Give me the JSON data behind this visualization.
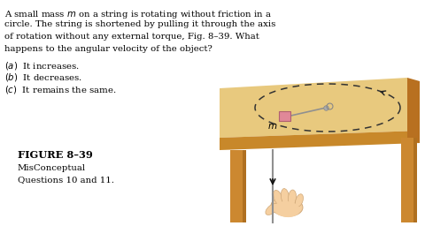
{
  "bg_color": "#ffffff",
  "text_color": "#000000",
  "q_lines": [
    "A small mass $m$ on a string is rotating without friction in a",
    "circle. The string is shortened by pulling it through the axis",
    "of rotation without any external torque, Fig. 8–39. What",
    "happens to the angular velocity of the object?"
  ],
  "opt_a": "$(a)$  It increases.",
  "opt_b": "$(b)$  It decreases.",
  "opt_c": "$(c)$  It remains the same.",
  "fig_label": "FIGURE 8–39",
  "fig_sub1": "MisConceptual",
  "fig_sub2": "Questions 10 and 11.",
  "font_size": 7.3,
  "fig_label_font_size": 8.2,
  "table_top_color": "#e8c97e",
  "table_front_color": "#c8882a",
  "table_side_color": "#b87020",
  "table_leg_color": "#cc8830",
  "table_leg_side_color": "#b07020",
  "mass_color": "#e08898",
  "mass_edge_color": "#b06070",
  "string_color": "#909090",
  "hole_color": "#888888",
  "dash_color": "#333333",
  "arrow_color": "#222222",
  "hand_base_color": "#f5cfa0",
  "hand_edge_color": "#d0a878",
  "hand_shadow_color": "#e8b888"
}
